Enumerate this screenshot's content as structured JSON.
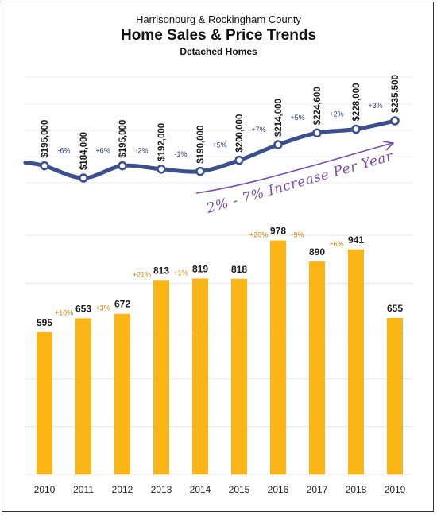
{
  "header": {
    "supertitle": "Harrisonburg & Rockingham County",
    "title": "Home Sales & Price Trends",
    "subtitle": "Detached Homes"
  },
  "annotation": {
    "text": "2% - 7% Increase Per Year"
  },
  "colors": {
    "line": "#3a4f8c",
    "bar": "#fbb516",
    "price_label": "#1a1a1a",
    "price_change": "#2b3f78",
    "sales_change": "#c48a0a",
    "annotation": "#7a4ea8",
    "grid": "#e6e6e6"
  },
  "chart_data": [
    {
      "type": "line",
      "name": "median-price",
      "x": [
        "2010",
        "2011",
        "2012",
        "2013",
        "2014",
        "2015",
        "2016",
        "2017",
        "2018",
        "2019"
      ],
      "values": [
        195000,
        184000,
        195000,
        192000,
        190000,
        200000,
        214000,
        224600,
        228000,
        235500
      ],
      "value_labels": [
        "$195,000",
        "$184,000",
        "$195,000",
        "$192,000",
        "$190,000",
        "$200,000",
        "$214,000",
        "$224,600",
        "$228,000",
        "$235,500"
      ],
      "change_labels": [
        "-6%",
        "+6%",
        "-2%",
        "-1%",
        "+5%",
        "+7%",
        "+5%",
        "+2%",
        "+3%"
      ]
    },
    {
      "type": "bar",
      "name": "sales-count",
      "categories": [
        "2010",
        "2011",
        "2012",
        "2013",
        "2014",
        "2015",
        "2016",
        "2017",
        "2018",
        "2019"
      ],
      "values": [
        595,
        653,
        672,
        813,
        819,
        818,
        978,
        890,
        941,
        655
      ],
      "value_labels": [
        "595",
        "653",
        "672",
        "813",
        "819",
        "818",
        "978",
        "890",
        "941",
        "655"
      ],
      "change_labels": [
        "+10%",
        "+3%",
        "+21%",
        "+1%",
        "",
        "+20%",
        "-9%",
        "+6%",
        ""
      ],
      "ylim": [
        0,
        1000
      ],
      "grid": true
    }
  ]
}
